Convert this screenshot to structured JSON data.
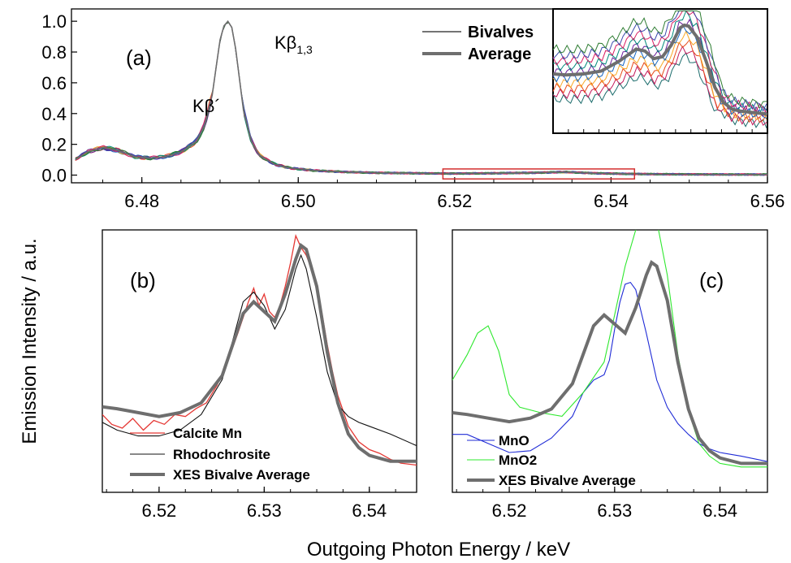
{
  "colors": {
    "bivalve_palette": [
      "#1a6b6b",
      "#c2185b",
      "#e64a19",
      "#f9a825",
      "#1565c0",
      "#6a1b9a",
      "#00897b",
      "#d81b60",
      "#3949ab",
      "#2e7d32"
    ],
    "average": "#6e6e6e",
    "highlight_box": "#d32f2f",
    "calcite": "#e53935",
    "rhodochrosite": "#111111",
    "mno": "#1f2bd6",
    "mno2": "#2ee82e"
  },
  "figure": {
    "ylabel": "Emission Intensity / a.u.",
    "xlabel": "Outgoing Photon Energy / keV"
  },
  "chart_data": [
    {
      "id": "a",
      "type": "line",
      "panel_label": "(a)",
      "xlim": [
        6.471,
        6.56
      ],
      "ylim": [
        -0.05,
        1.08
      ],
      "xticks": [
        "6.48",
        "6.50",
        "6.52",
        "6.54",
        "6.56"
      ],
      "yticks": [
        "0.0",
        "0.2",
        "0.4",
        "0.6",
        "0.8",
        "1.0"
      ],
      "annotations": {
        "kb_prime": "Kβ´",
        "kb13_main": "Kβ",
        "kb13_sub": "1,3"
      },
      "legend": {
        "bivalves": "Bivalves",
        "average": "Average"
      },
      "highlight_range": {
        "x": [
          6.5185,
          6.543
        ],
        "y": [
          -0.025,
          0.04
        ]
      },
      "average": {
        "x": [
          6.4715,
          6.473,
          6.475,
          6.477,
          6.479,
          6.481,
          6.483,
          6.485,
          6.487,
          6.488,
          6.489,
          6.4895,
          6.49,
          6.4905,
          6.491,
          6.4915,
          6.492,
          6.4925,
          6.493,
          6.494,
          6.495,
          6.497,
          6.499,
          6.502,
          6.506,
          6.51,
          6.515,
          6.52,
          6.525,
          6.53,
          6.534,
          6.538,
          6.542,
          6.546,
          6.55,
          6.555,
          6.56
        ],
        "y": [
          0.1,
          0.15,
          0.18,
          0.16,
          0.12,
          0.11,
          0.12,
          0.15,
          0.22,
          0.32,
          0.52,
          0.7,
          0.88,
          0.97,
          1.0,
          0.96,
          0.82,
          0.62,
          0.42,
          0.22,
          0.13,
          0.07,
          0.045,
          0.03,
          0.02,
          0.015,
          0.012,
          0.01,
          0.012,
          0.015,
          0.02,
          0.012,
          0.008,
          0.006,
          0.005,
          0.004,
          0.004
        ]
      }
    },
    {
      "id": "inset",
      "type": "line",
      "xlim": [
        6.5185,
        6.543
      ],
      "ylim": [
        -0.2,
        1.1
      ],
      "average": {
        "x": [
          6.5185,
          6.52,
          6.522,
          6.524,
          6.526,
          6.528,
          6.529,
          6.53,
          6.531,
          6.532,
          6.533,
          6.5335,
          6.534,
          6.535,
          6.536,
          6.537,
          6.538,
          6.539,
          6.54,
          6.541,
          6.542,
          6.543
        ],
        "y": [
          0.42,
          0.41,
          0.42,
          0.45,
          0.55,
          0.68,
          0.66,
          0.58,
          0.6,
          0.72,
          0.9,
          0.93,
          0.92,
          0.8,
          0.55,
          0.28,
          0.12,
          0.05,
          0.03,
          0.02,
          0.01,
          0.0
        ]
      }
    },
    {
      "id": "b",
      "type": "line",
      "panel_label": "(b)",
      "xlim": [
        6.5146,
        6.5445
      ],
      "ylim": [
        -0.1,
        1.25
      ],
      "xticks": [
        "6.52",
        "6.53",
        "6.54"
      ],
      "series": [
        {
          "name": "Calcite Mn",
          "color": "#e53935",
          "width": 1.3,
          "x": [
            6.5146,
            6.5155,
            6.5165,
            6.5175,
            6.5185,
            6.5195,
            6.5205,
            6.5215,
            6.5225,
            6.5235,
            6.5245,
            6.5255,
            6.5265,
            6.5275,
            6.5285,
            6.529,
            6.5295,
            6.53,
            6.5305,
            6.531,
            6.5315,
            6.532,
            6.5325,
            6.533,
            6.5335,
            6.534,
            6.5345,
            6.535,
            6.5355,
            6.536,
            6.5365,
            6.537,
            6.5375,
            6.538,
            6.539,
            6.54,
            6.541,
            6.542,
            6.543,
            6.5445
          ],
          "y": [
            0.3,
            0.25,
            0.23,
            0.28,
            0.22,
            0.27,
            0.25,
            0.3,
            0.29,
            0.33,
            0.36,
            0.45,
            0.57,
            0.72,
            0.88,
            0.95,
            0.86,
            0.92,
            0.83,
            0.8,
            0.86,
            0.96,
            1.08,
            1.22,
            1.16,
            1.12,
            1.05,
            0.94,
            0.82,
            0.66,
            0.52,
            0.4,
            0.32,
            0.24,
            0.16,
            0.12,
            0.1,
            0.07,
            0.05,
            0.04
          ]
        },
        {
          "name": "Rhodochrosite",
          "color": "#111111",
          "width": 1.1,
          "x": [
            6.5146,
            6.516,
            6.518,
            6.52,
            6.522,
            6.524,
            6.526,
            6.527,
            6.528,
            6.529,
            6.53,
            6.531,
            6.532,
            6.533,
            6.5335,
            6.534,
            6.535,
            6.536,
            6.537,
            6.538,
            6.539,
            6.54,
            6.542,
            6.5445
          ],
          "y": [
            0.26,
            0.22,
            0.19,
            0.19,
            0.22,
            0.3,
            0.48,
            0.68,
            0.88,
            0.93,
            0.86,
            0.74,
            0.84,
            1.05,
            1.12,
            1.05,
            0.8,
            0.52,
            0.35,
            0.29,
            0.26,
            0.24,
            0.2,
            0.14
          ]
        },
        {
          "name": "XES Bivalve Average",
          "color": "#6e6e6e",
          "width": 4,
          "x": [
            6.5146,
            6.516,
            6.518,
            6.52,
            6.522,
            6.524,
            6.526,
            6.527,
            6.528,
            6.529,
            6.53,
            6.531,
            6.532,
            6.533,
            6.5335,
            6.534,
            6.535,
            6.536,
            6.537,
            6.538,
            6.539,
            6.54,
            6.542,
            6.5445
          ],
          "y": [
            0.34,
            0.33,
            0.31,
            0.29,
            0.31,
            0.36,
            0.5,
            0.66,
            0.82,
            0.88,
            0.83,
            0.78,
            0.92,
            1.1,
            1.17,
            1.15,
            0.96,
            0.62,
            0.36,
            0.2,
            0.13,
            0.09,
            0.06,
            0.06
          ]
        }
      ]
    },
    {
      "id": "c",
      "type": "line",
      "panel_label": "(c)",
      "xlim": [
        6.5146,
        6.5445
      ],
      "ylim": [
        -0.1,
        1.35
      ],
      "xticks": [
        "6.52",
        "6.53",
        "6.54"
      ],
      "series": [
        {
          "name": "MnO",
          "color": "#1f2bd6",
          "width": 1.1,
          "x": [
            6.5146,
            6.516,
            6.518,
            6.52,
            6.522,
            6.524,
            6.526,
            6.527,
            6.528,
            6.529,
            6.5295,
            6.53,
            6.5305,
            6.531,
            6.5315,
            6.532,
            6.533,
            6.534,
            6.535,
            6.536,
            6.537,
            6.538,
            6.539,
            6.54,
            6.542,
            6.5445
          ],
          "y": [
            0.22,
            0.22,
            0.17,
            0.12,
            0.13,
            0.2,
            0.32,
            0.45,
            0.52,
            0.55,
            0.63,
            0.8,
            0.95,
            1.05,
            1.06,
            1.02,
            0.78,
            0.52,
            0.37,
            0.28,
            0.22,
            0.17,
            0.14,
            0.12,
            0.1,
            0.07
          ]
        },
        {
          "name": "MnO2",
          "color": "#2ee82e",
          "width": 1.1,
          "x": [
            6.5146,
            6.516,
            6.517,
            6.518,
            6.519,
            6.52,
            6.521,
            6.523,
            6.525,
            6.527,
            6.529,
            6.53,
            6.531,
            6.532,
            6.533,
            6.534,
            6.535,
            6.536,
            6.537,
            6.538,
            6.539,
            6.54,
            6.542,
            6.5445
          ],
          "y": [
            0.52,
            0.66,
            0.78,
            0.82,
            0.68,
            0.44,
            0.37,
            0.34,
            0.32,
            0.45,
            0.62,
            0.88,
            1.15,
            1.35,
            1.42,
            1.4,
            1.1,
            0.66,
            0.35,
            0.17,
            0.1,
            0.06,
            0.04,
            0.04
          ]
        },
        {
          "name": "XES Bivalve Average",
          "color": "#6e6e6e",
          "width": 4,
          "x": [
            6.5146,
            6.516,
            6.518,
            6.52,
            6.522,
            6.524,
            6.526,
            6.527,
            6.528,
            6.529,
            6.53,
            6.531,
            6.532,
            6.533,
            6.5335,
            6.534,
            6.535,
            6.536,
            6.537,
            6.538,
            6.539,
            6.54,
            6.542,
            6.5445
          ],
          "y": [
            0.34,
            0.33,
            0.31,
            0.29,
            0.31,
            0.36,
            0.5,
            0.66,
            0.82,
            0.88,
            0.83,
            0.78,
            0.92,
            1.1,
            1.17,
            1.15,
            0.96,
            0.62,
            0.36,
            0.2,
            0.13,
            0.09,
            0.06,
            0.06
          ]
        }
      ]
    }
  ]
}
